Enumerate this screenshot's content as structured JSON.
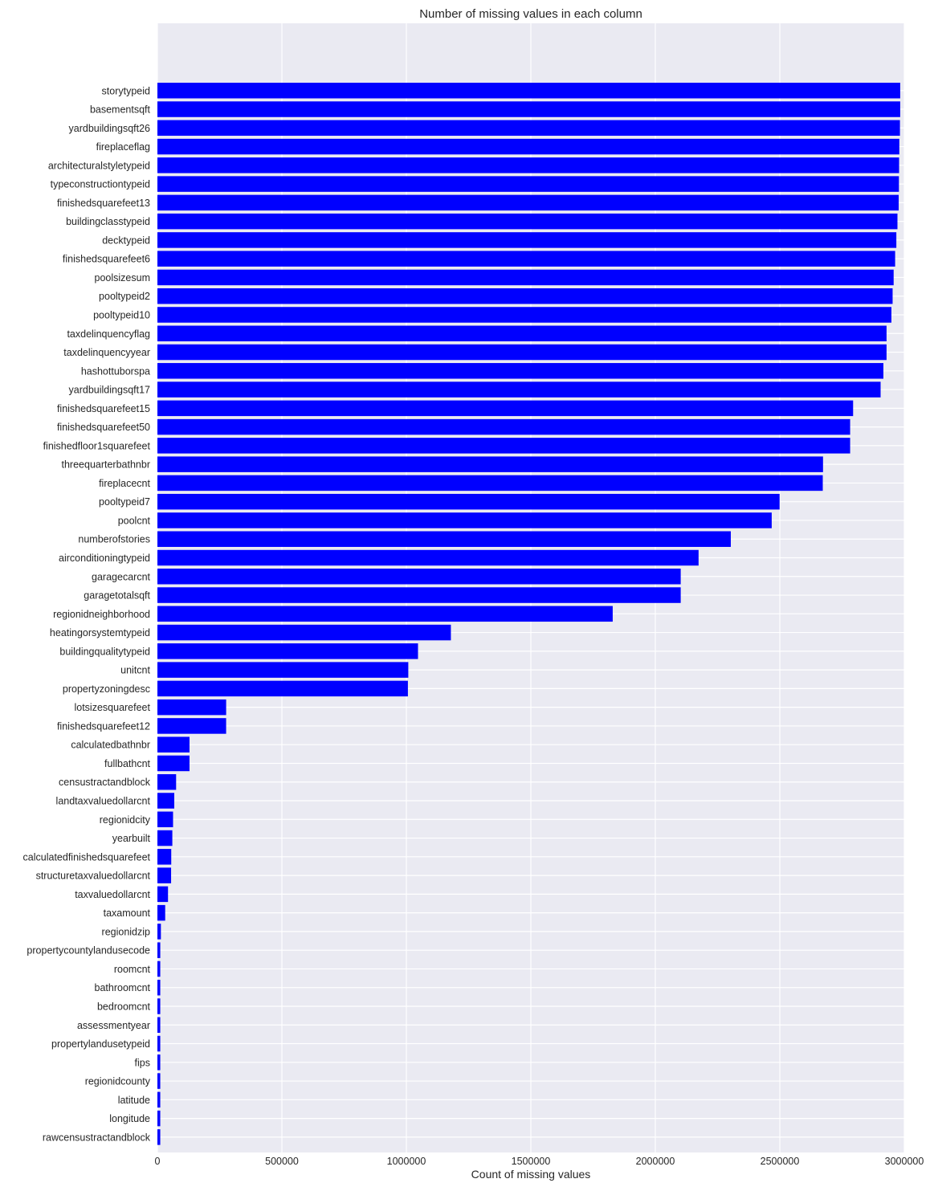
{
  "chart_data": {
    "type": "bar",
    "orientation": "horizontal",
    "title": "Number of missing values in each column",
    "xlabel": "Count of missing values",
    "ylabel": "",
    "xlim": [
      0,
      3000000
    ],
    "xticks": [
      0,
      500000,
      1000000,
      1500000,
      2000000,
      2500000,
      3000000
    ],
    "xtick_labels": [
      "0",
      "500000",
      "1000000",
      "1500000",
      "2000000",
      "2500000",
      "3000000"
    ],
    "grid": true,
    "bar_color": "#0000ff",
    "background_color": "#eaeaf2",
    "grid_color": "#ffffff",
    "categories": [
      "storytypeid",
      "basementsqft",
      "yardbuildingsqft26",
      "fireplaceflag",
      "architecturalstyletypeid",
      "typeconstructiontypeid",
      "finishedsquarefeet13",
      "buildingclasstypeid",
      "decktypeid",
      "finishedsquarefeet6",
      "poolsizesum",
      "pooltypeid2",
      "pooltypeid10",
      "taxdelinquencyflag",
      "taxdelinquencyyear",
      "hashottuborspa",
      "yardbuildingsqft17",
      "finishedsquarefeet15",
      "finishedsquarefeet50",
      "finishedfloor1squarefeet",
      "threequarterbathnbr",
      "fireplacecnt",
      "pooltypeid7",
      "poolcnt",
      "numberofstories",
      "airconditioningtypeid",
      "garagecarcnt",
      "garagetotalsqft",
      "regionidneighborhood",
      "heatingorsystemtypeid",
      "buildingqualitytypeid",
      "unitcnt",
      "propertyzoningdesc",
      "lotsizesquarefeet",
      "finishedsquarefeet12",
      "calculatedbathnbr",
      "fullbathcnt",
      "censustractandblock",
      "landtaxvaluedollarcnt",
      "regionidcity",
      "yearbuilt",
      "calculatedfinishedsquarefeet",
      "structuretaxvaluedollarcnt",
      "taxvaluedollarcnt",
      "taxamount",
      "regionidzip",
      "propertycountylandusecode",
      "roomcnt",
      "bathroomcnt",
      "bedroomcnt",
      "assessmentyear",
      "propertylandusetypeid",
      "fips",
      "regionidcounty",
      "latitude",
      "longitude",
      "rawcensustractandblock"
    ],
    "values": [
      2983590,
      2983589,
      2982570,
      2980054,
      2979156,
      2978470,
      2977545,
      2972588,
      2968121,
      2963216,
      2957257,
      2953110,
      2948278,
      2928755,
      2928753,
      2916093,
      2904862,
      2794419,
      2782500,
      2782500,
      2673586,
      2672580,
      2499175,
      2467450,
      2303148,
      2173698,
      2101950,
      2101950,
      1828815,
      1178816,
      1046729,
      1007727,
      1006180,
      276099,
      276033,
      128912,
      128912,
      75126,
      67733,
      62845,
      59928,
      55565,
      54982,
      42550,
      31250,
      13980,
      11467,
      11416,
      11416,
      11416,
      11416,
      11416,
      11416,
      11416,
      11416,
      11416,
      11416
    ]
  }
}
